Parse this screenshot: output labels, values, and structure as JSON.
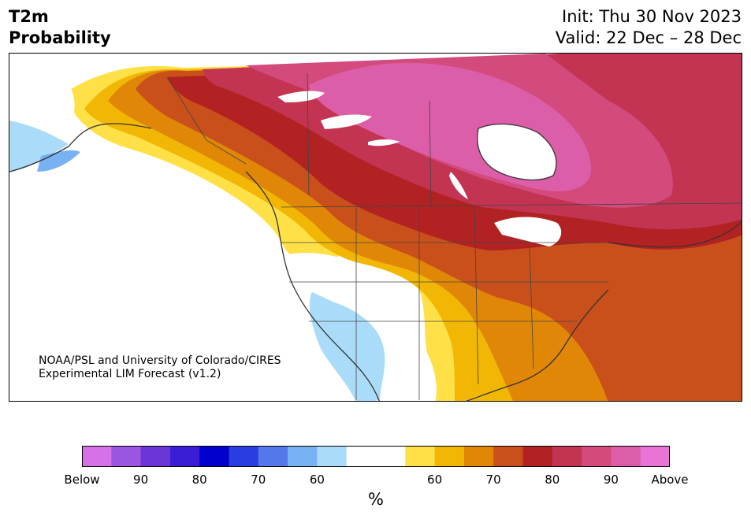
{
  "header": {
    "variable": "T2m",
    "product": "Probability",
    "init": "Init: Thu 30 Nov 2023",
    "valid": "Valid: 22 Dec – 28 Dec"
  },
  "credit": {
    "line1": "NOAA/PSL and University of Colorado/CIRES",
    "line2": "Experimental LIM Forecast (v1.2)"
  },
  "colorbar": {
    "unit": "%",
    "colors": [
      "#d672e8",
      "#9b55e0",
      "#6b35d8",
      "#3a1ed6",
      "#0000cc",
      "#2a3de0",
      "#5478ea",
      "#78b2f2",
      "#aadcfa",
      "#ffffff",
      "#ffffff",
      "#ffe047",
      "#f2b705",
      "#e08708",
      "#c9501a",
      "#b22222",
      "#c33452",
      "#d24b7c",
      "#dc5ea8",
      "#e874d6"
    ],
    "tick_labels": [
      "Below",
      "90",
      "80",
      "70",
      "60",
      "60",
      "70",
      "80",
      "90",
      "Above"
    ]
  },
  "legend_semantics": {
    "cool_side": "below-normal probability",
    "warm_side": "above-normal probability"
  }
}
